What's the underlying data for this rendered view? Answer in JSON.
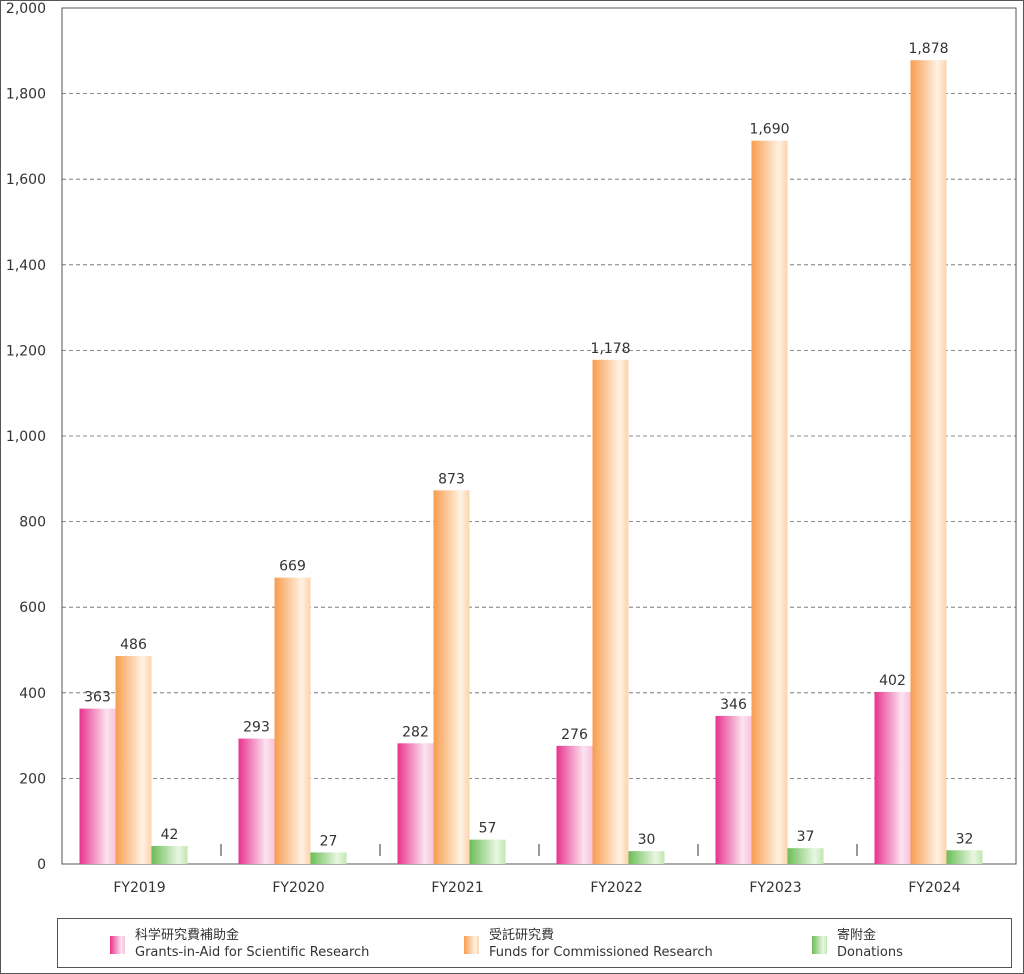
{
  "chart_data": {
    "type": "bar",
    "categories": [
      "FY2019",
      "FY2020",
      "FY2021",
      "FY2022",
      "FY2023",
      "FY2024"
    ],
    "series": [
      {
        "name": "科学研究費補助金 Grants-in-Aid for Scientific Research",
        "values": [
          363,
          293,
          282,
          276,
          346,
          402
        ],
        "labels": [
          "363",
          "293",
          "282",
          "276",
          "346",
          "402"
        ]
      },
      {
        "name": "受託研究費 Funds for Commissioned Research",
        "values": [
          486,
          669,
          873,
          1178,
          1690,
          1878
        ],
        "labels": [
          "486",
          "669",
          "873",
          "1,178",
          "1,690",
          "1,878"
        ]
      },
      {
        "name": "寄附金 Donations",
        "values": [
          42,
          27,
          57,
          30,
          37,
          32
        ],
        "labels": [
          "42",
          "27",
          "57",
          "30",
          "37",
          "32"
        ]
      }
    ],
    "ylim": [
      0,
      2000
    ],
    "yticks": [
      0,
      200,
      400,
      600,
      800,
      1000,
      1200,
      1400,
      1600,
      1800,
      2000
    ],
    "ytick_labels": [
      "0",
      "200",
      "400",
      "600",
      "800",
      "1,000",
      "1,200",
      "1,400",
      "1,600",
      "1,800",
      "2,000"
    ],
    "grid": "horizontal-dashed",
    "legend_position": "bottom",
    "colors": {
      "grants": [
        "#e62e8a",
        "#fde6f1"
      ],
      "commissioned": [
        "#f9a35a",
        "#fff1e2"
      ],
      "donations": [
        "#6ebf5a",
        "#e6f6de"
      ]
    }
  },
  "legend": {
    "grants_jp": "科学研究費補助金",
    "grants_en": "Grants-in-Aid for Scientific Research",
    "commissioned_jp": "受託研究費",
    "commissioned_en": "Funds for Commissioned Research",
    "donations_jp": "寄附金",
    "donations_en": "Donations"
  }
}
